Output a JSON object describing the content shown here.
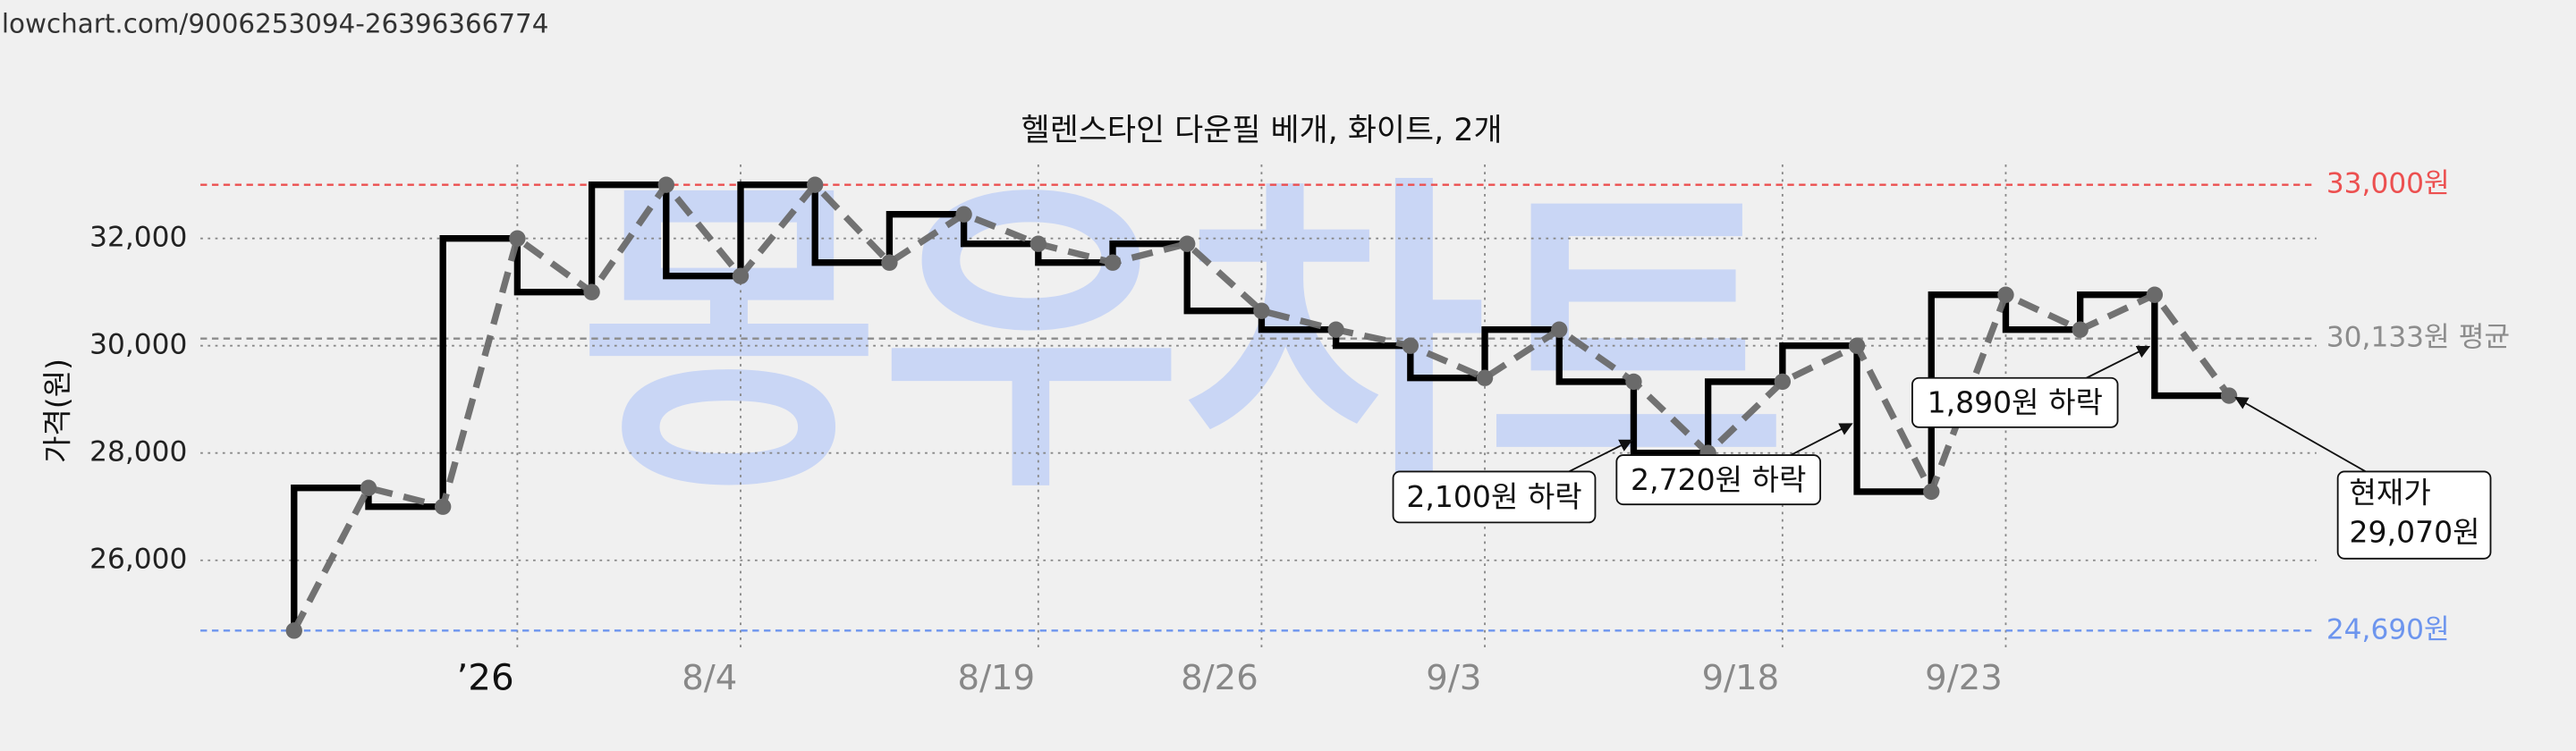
{
  "url": "lowchart.com/9006253094-26396366774",
  "chart_data": {
    "type": "step-line",
    "title": "헬렌스타인 다운필 베개, 화이트, 2개",
    "ylabel": "가격(원)",
    "watermark": "몽우차트",
    "categories": [
      null,
      null,
      null,
      "’26",
      null,
      null,
      "8/4",
      null,
      null,
      null,
      "8/19",
      null,
      null,
      "8/26",
      null,
      null,
      "9/3",
      null,
      null,
      null,
      "9/18",
      null,
      null,
      "9/23",
      null,
      null,
      null
    ],
    "series": [
      {
        "name": "가격",
        "color": "#000000",
        "values": [
          24690,
          27350,
          27000,
          32000,
          31000,
          33000,
          31300,
          33000,
          31550,
          32450,
          31900,
          31550,
          31900,
          30650,
          30300,
          30000,
          29400,
          30300,
          29330,
          28000,
          29330,
          30000,
          27280,
          30950,
          30300,
          30950,
          29070
        ]
      }
    ],
    "ylim": [
      24000,
      34000
    ],
    "yticks": [
      {
        "value": 26000,
        "label": "26,000"
      },
      {
        "value": 28000,
        "label": "28,000"
      },
      {
        "value": 30000,
        "label": "30,000"
      },
      {
        "value": 32000,
        "label": "32,000"
      }
    ],
    "grid": true,
    "reference_lines": [
      {
        "value": 33000,
        "label": "33,000원",
        "color": "#ec5050"
      },
      {
        "value": 30133,
        "label": "30,133원 평균",
        "color": "#8c8c8c"
      },
      {
        "value": 24690,
        "label": "24,690원",
        "color": "#6d95ee"
      }
    ],
    "annotations": [
      "2,100원 하락",
      "2,720원 하락",
      "1,890원 하락"
    ],
    "current_price_label": [
      "현재가",
      "29,070원"
    ]
  }
}
